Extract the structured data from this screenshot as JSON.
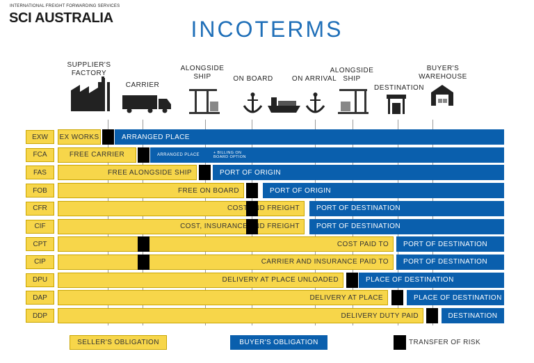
{
  "header": {
    "tagline": "INTERNATIONAL FREIGHT FORWARDING SERVICES",
    "brand": "SCI AUSTRALIA",
    "title": "INCOTERMS"
  },
  "stages": [
    "SUPPLIER'S FACTORY",
    "CARRIER",
    "ALONGSIDE SHIP",
    "ON BOARD",
    "ON ARRIVAL",
    "ALONGSIDE SHIP",
    "DESTINATION",
    "BUYER'S WAREHOUSE"
  ],
  "rows": [
    {
      "code": "EXW",
      "seller": "EX WORKS",
      "buyer": "ARRANGED PLACE"
    },
    {
      "code": "FCA",
      "seller": "FREE CARRIER",
      "buyer": "ARRANGED PLACE",
      "buyer_note": "+ BILLING ON BOARD OPTION"
    },
    {
      "code": "FAS",
      "seller": "FREE ALONGSIDE SHIP",
      "buyer": "PORT OF ORIGIN"
    },
    {
      "code": "FOB",
      "seller": "FREE ON BOARD",
      "buyer": "PORT OF ORIGIN"
    },
    {
      "code": "CFR",
      "seller": "COST AND FREIGHT",
      "buyer": "PORT OF DESTINATION"
    },
    {
      "code": "CIF",
      "seller": "COST, INSURANCE AND FREIGHT",
      "buyer": "PORT OF DESTINATION"
    },
    {
      "code": "CPT",
      "seller": "COST PAID TO",
      "buyer": "PORT OF DESTINATION"
    },
    {
      "code": "CIP",
      "seller": "CARRIER AND INSURANCE PAID TO",
      "buyer": "PORT OF DESTINATION"
    },
    {
      "code": "DPU",
      "seller": "DELIVERY AT PLACE UNLOADED",
      "buyer": "PLACE OF DESTINATION"
    },
    {
      "code": "DAP",
      "seller": "DELIVERY AT PLACE",
      "buyer": "PLACE OF DESTINATION"
    },
    {
      "code": "DDP",
      "seller": "DELIVERY DUTY PAID",
      "buyer": "DESTINATION"
    }
  ],
  "legend": {
    "seller": "SELLER'S OBLIGATION",
    "buyer": "BUYER'S OBLIGATION",
    "risk": "TRANSFER OF RISK"
  }
}
